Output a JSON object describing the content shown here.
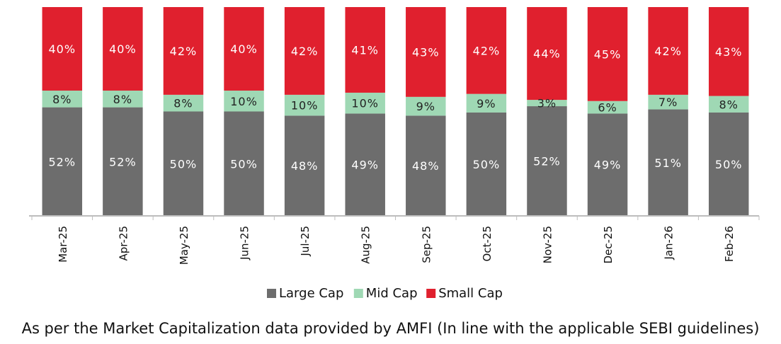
{
  "chart_data": {
    "type": "bar",
    "stacked": true,
    "percent_stacked": true,
    "categories": [
      "Mar-25",
      "Apr-25",
      "May-25",
      "Jun-25",
      "Jul-25",
      "Aug-25",
      "Sep-25",
      "Oct-25",
      "Nov-25",
      "Dec-25",
      "Jan-26",
      "Feb-26"
    ],
    "series": [
      {
        "name": "Large Cap",
        "color": "#6d6d6d",
        "values": [
          52,
          52,
          50,
          50,
          48,
          49,
          48,
          50,
          52,
          49,
          51,
          50
        ],
        "labels": [
          "52%",
          "52%",
          "50%",
          "50%",
          "48%",
          "49%",
          "48%",
          "50%",
          "52%",
          "49%",
          "51%",
          "50%"
        ]
      },
      {
        "name": "Mid Cap",
        "color": "#9fd8b4",
        "values": [
          8,
          8,
          8,
          10,
          10,
          10,
          9,
          9,
          3,
          6,
          7,
          8
        ],
        "labels": [
          "8%",
          "8%",
          "8%",
          "10%",
          "10%",
          "10%",
          "9%",
          "9%",
          "3%",
          "6%",
          "7%",
          "8%"
        ]
      },
      {
        "name": "Small Cap",
        "color": "#e0202e",
        "values": [
          40,
          40,
          42,
          40,
          42,
          41,
          43,
          42,
          44,
          45,
          42,
          43
        ],
        "labels": [
          "40%",
          "40%",
          "42%",
          "40%",
          "42%",
          "41%",
          "43%",
          "42%",
          "44%",
          "45%",
          "42%",
          "43%"
        ]
      }
    ],
    "legend": {
      "position": "bottom"
    },
    "grid": false,
    "footnote": "As per the Market Capitalization data provided by AMFI (In line with the applicable SEBI guidelines)"
  }
}
